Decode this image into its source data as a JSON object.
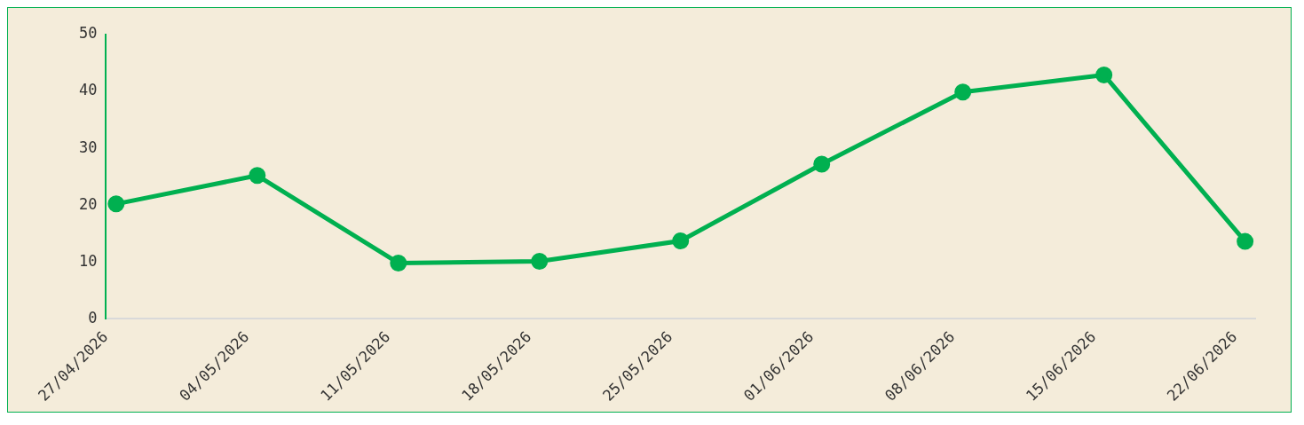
{
  "chart_data": {
    "type": "line",
    "marker": "circle",
    "line_style": "solid",
    "x": [
      "2026-04-27T12:00",
      "2026-05-04T12:00",
      "2026-05-11T12:00",
      "2026-05-18T12:00",
      "2026-05-25T12:00",
      "2026-06-01T12:00",
      "2026-06-08T12:00",
      "2026-06-15T12:00",
      "2026-06-22T12:00"
    ],
    "series": [
      {
        "color": "#00b050",
        "values": [
          20.2,
          25.2,
          9.8,
          10.1,
          13.7,
          27.2,
          39.9,
          42.9,
          13.6
        ]
      }
    ],
    "xlim": [
      "2026-04-27",
      "2026-06-23"
    ],
    "xticks": [
      {
        "value": "2026-04-27",
        "label": "27/04/2026"
      },
      {
        "value": "2026-05-04",
        "label": "04/05/2026"
      },
      {
        "value": "2026-05-11",
        "label": "11/05/2026"
      },
      {
        "value": "2026-05-18",
        "label": "18/05/2026"
      },
      {
        "value": "2026-05-25",
        "label": "25/05/2026"
      },
      {
        "value": "2026-06-01",
        "label": "01/06/2026"
      },
      {
        "value": "2026-06-08",
        "label": "08/06/2026"
      },
      {
        "value": "2026-06-15",
        "label": "15/06/2026"
      },
      {
        "value": "2026-06-22",
        "label": "22/06/2026"
      }
    ],
    "ylim": [
      0,
      50
    ],
    "yticks": [
      0,
      10,
      20,
      30,
      40,
      50
    ]
  }
}
